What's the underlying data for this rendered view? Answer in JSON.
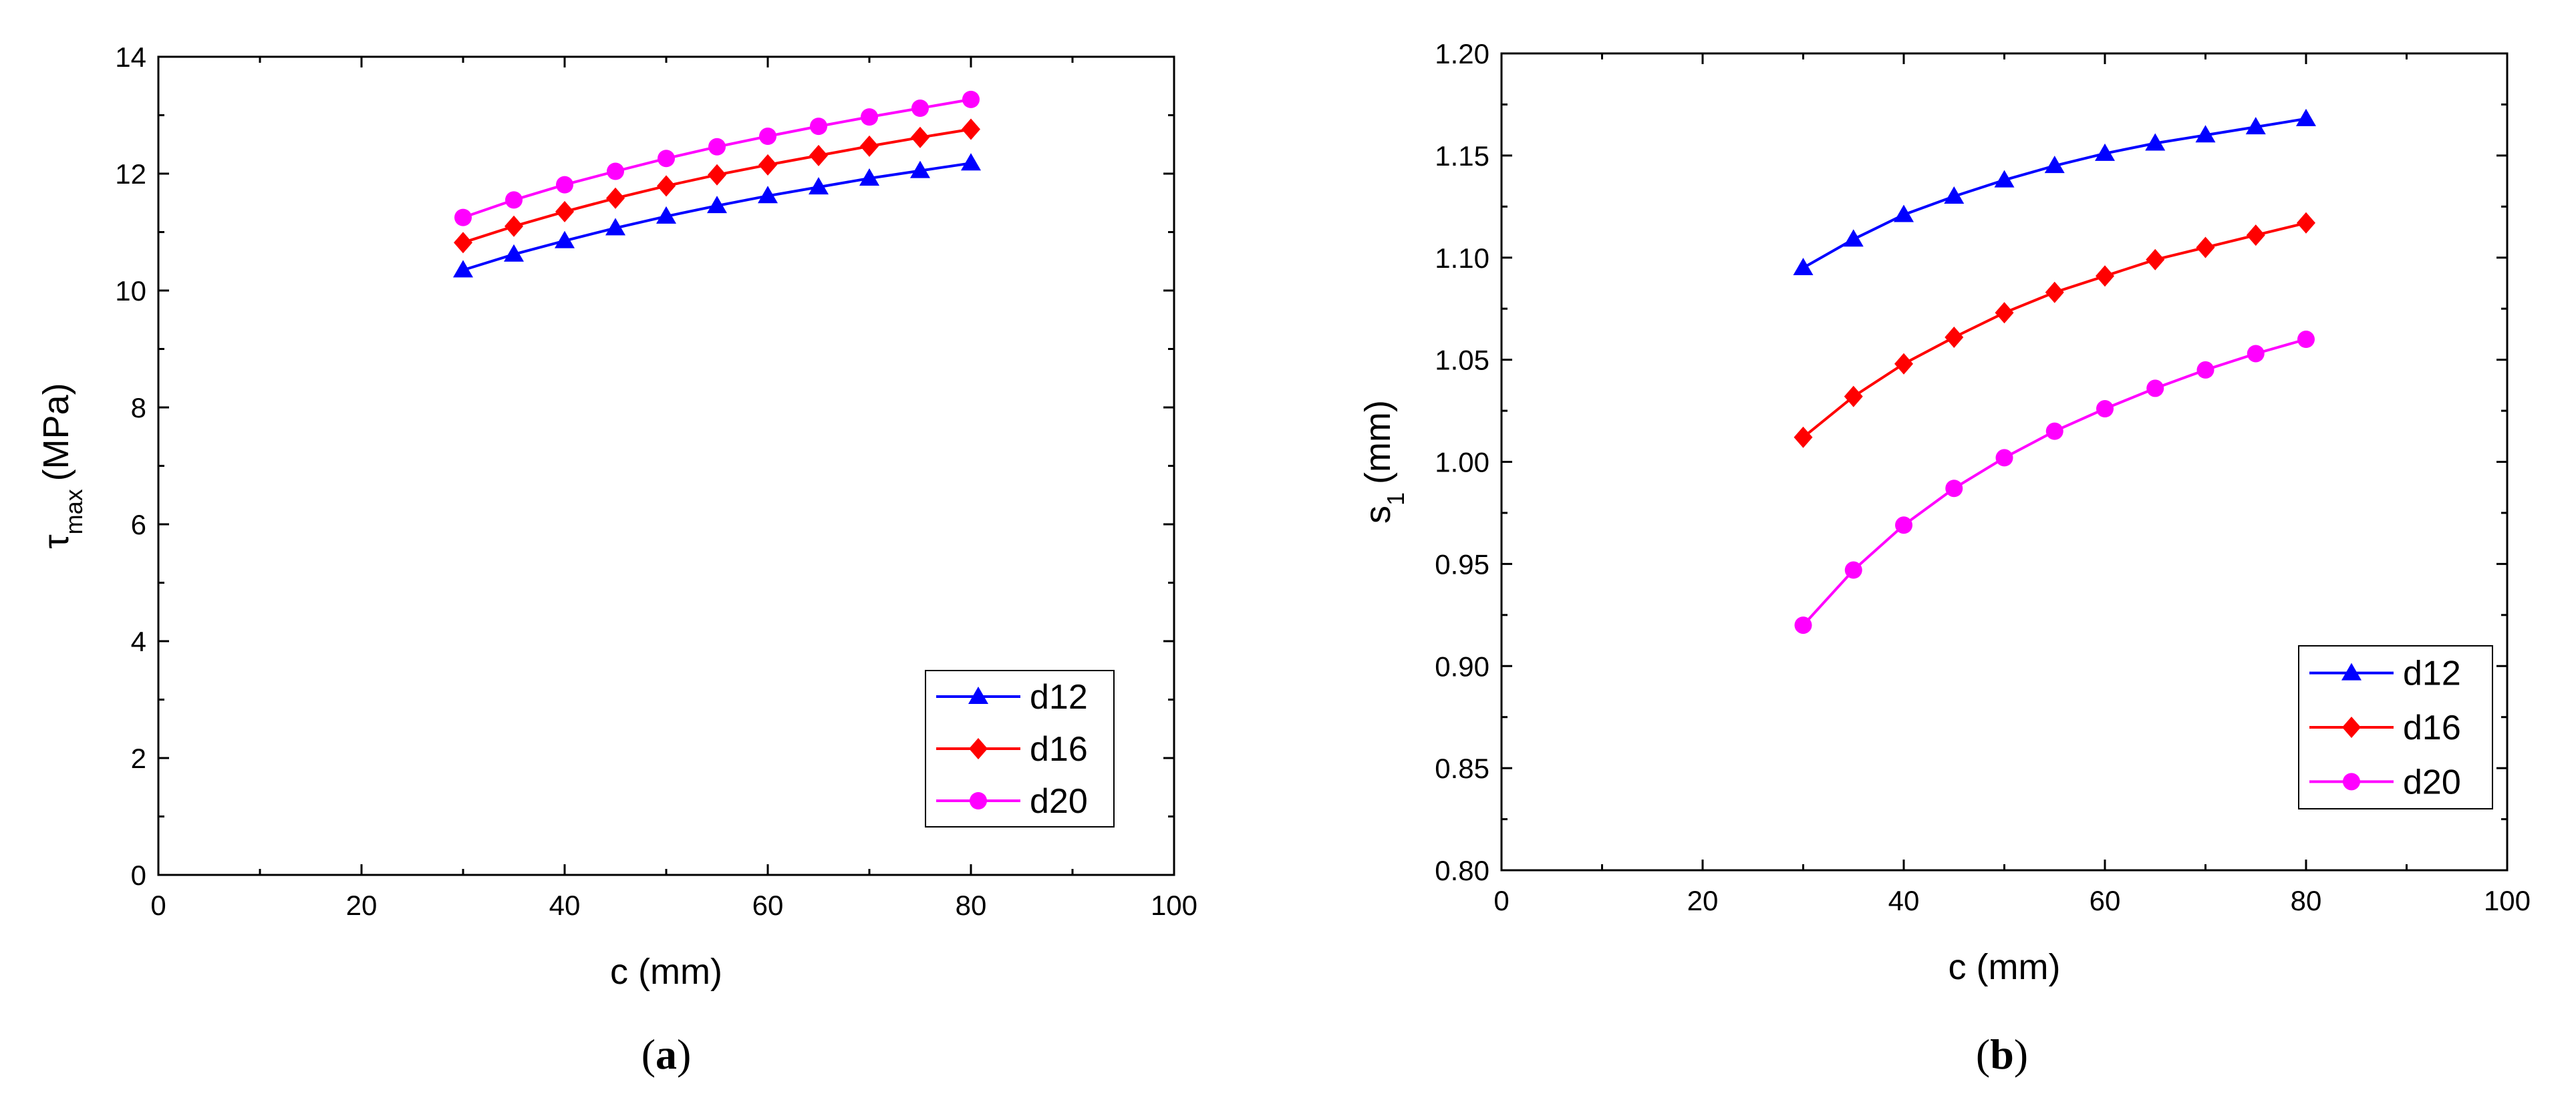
{
  "chart_data": [
    {
      "type": "line",
      "panel": "a",
      "caption_letter": "a",
      "xlabel": "c (mm)",
      "ylabel_main": "τ",
      "ylabel_sub": "max",
      "ylabel_unit": "(MPa)",
      "xlim": [
        0,
        100
      ],
      "ylim": [
        0,
        14
      ],
      "xticks": [
        0,
        20,
        40,
        60,
        80,
        100
      ],
      "yticks": [
        0,
        2,
        4,
        6,
        8,
        10,
        12,
        14
      ],
      "xtick_labels": [
        "0",
        "20",
        "40",
        "60",
        "80",
        "100"
      ],
      "ytick_labels": [
        "0",
        "2",
        "4",
        "6",
        "8",
        "10",
        "12",
        "14"
      ],
      "legend_position": "bottom-right",
      "x": [
        30,
        35,
        40,
        45,
        50,
        55,
        60,
        65,
        70,
        75,
        80
      ],
      "series": [
        {
          "name": "d12",
          "color": "#0000ff",
          "marker": "triangle",
          "values": [
            10.35,
            10.62,
            10.85,
            11.07,
            11.27,
            11.45,
            11.62,
            11.77,
            11.92,
            12.05,
            12.18
          ]
        },
        {
          "name": "d16",
          "color": "#ff0000",
          "marker": "diamond",
          "values": [
            10.82,
            11.1,
            11.35,
            11.58,
            11.79,
            11.98,
            12.15,
            12.31,
            12.47,
            12.62,
            12.76
          ]
        },
        {
          "name": "d20",
          "color": "#ff00ff",
          "marker": "circle",
          "values": [
            11.25,
            11.55,
            11.81,
            12.04,
            12.26,
            12.46,
            12.64,
            12.81,
            12.97,
            13.12,
            13.27
          ]
        }
      ]
    },
    {
      "type": "line",
      "panel": "b",
      "caption_letter": "b",
      "xlabel": "c (mm)",
      "ylabel_main": "s",
      "ylabel_sub": "1",
      "ylabel_unit": "(mm)",
      "xlim": [
        0,
        100
      ],
      "ylim": [
        0.8,
        1.2
      ],
      "xticks": [
        0,
        20,
        40,
        60,
        80,
        100
      ],
      "yticks": [
        0.8,
        0.85,
        0.9,
        0.95,
        1.0,
        1.05,
        1.1,
        1.15,
        1.2
      ],
      "xtick_labels": [
        "0",
        "20",
        "40",
        "60",
        "80",
        "100"
      ],
      "ytick_labels": [
        "0.80",
        "0.85",
        "0.90",
        "0.95",
        "1.00",
        "1.05",
        "1.10",
        "1.15",
        "1.20"
      ],
      "legend_position": "bottom-right",
      "x": [
        30,
        35,
        40,
        45,
        50,
        55,
        60,
        65,
        70,
        75,
        80
      ],
      "series": [
        {
          "name": "d12",
          "color": "#0000ff",
          "marker": "triangle",
          "values": [
            1.095,
            1.109,
            1.121,
            1.13,
            1.138,
            1.145,
            1.151,
            1.156,
            1.16,
            1.164,
            1.168
          ]
        },
        {
          "name": "d16",
          "color": "#ff0000",
          "marker": "diamond",
          "values": [
            1.012,
            1.032,
            1.048,
            1.061,
            1.073,
            1.083,
            1.091,
            1.099,
            1.105,
            1.111,
            1.117
          ]
        },
        {
          "name": "d20",
          "color": "#ff00ff",
          "marker": "circle",
          "values": [
            0.92,
            0.947,
            0.969,
            0.987,
            1.002,
            1.015,
            1.026,
            1.036,
            1.045,
            1.053,
            1.06
          ]
        }
      ]
    }
  ]
}
